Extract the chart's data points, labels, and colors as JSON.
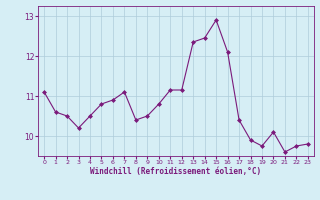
{
  "x": [
    0,
    1,
    2,
    3,
    4,
    5,
    6,
    7,
    8,
    9,
    10,
    11,
    12,
    13,
    14,
    15,
    16,
    17,
    18,
    19,
    20,
    21,
    22,
    23
  ],
  "y": [
    11.1,
    10.6,
    10.5,
    10.2,
    10.5,
    10.8,
    10.9,
    11.1,
    10.4,
    10.5,
    10.8,
    11.15,
    11.15,
    12.35,
    12.45,
    12.9,
    12.1,
    10.4,
    9.9,
    9.75,
    10.1,
    9.6,
    9.75,
    9.8
  ],
  "xlabel": "Windchill (Refroidissement éolien,°C)",
  "ylabel": "",
  "bg_color": "#d6eef5",
  "line_color": "#7b1a7b",
  "marker_color": "#7b1a7b",
  "grid_color": "#aeccda",
  "axis_color": "#7b1a7b",
  "tick_color": "#7b1a7b",
  "label_color": "#7b1a7b",
  "ylim_min": 9.5,
  "ylim_max": 13.25,
  "ytick_major": [
    10,
    11,
    12,
    13
  ],
  "title": ""
}
